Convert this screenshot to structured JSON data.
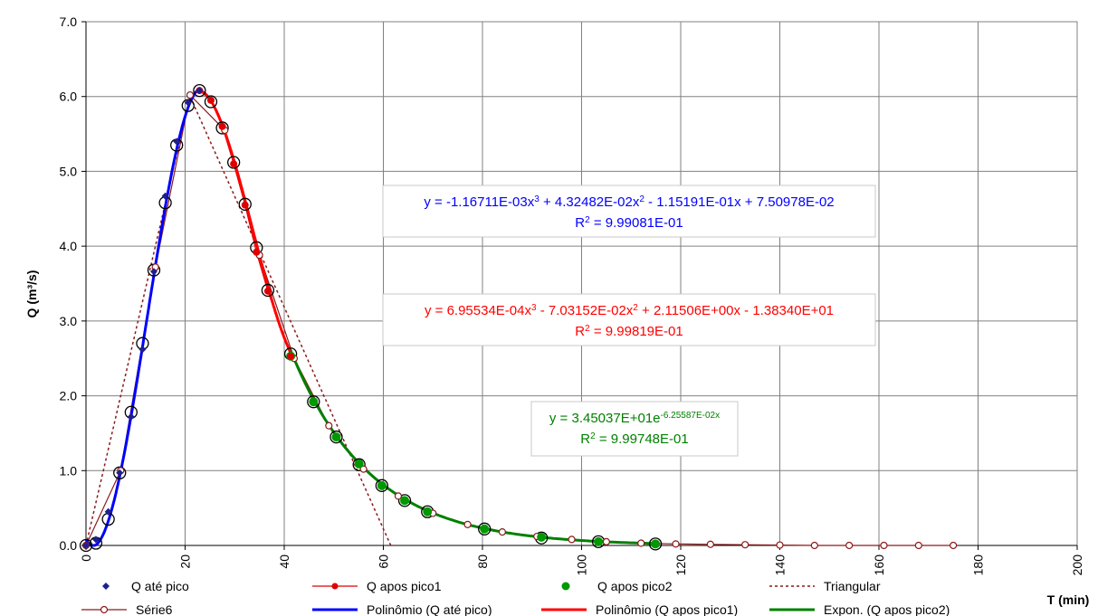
{
  "chart_data": {
    "type": "scatter",
    "xlabel": "T (min)",
    "ylabel": "Q (m³/s)",
    "xlim": [
      0,
      200
    ],
    "ylim": [
      0,
      7
    ],
    "xticks": [
      "0",
      "20",
      "40",
      "60",
      "80",
      "100",
      "120",
      "140",
      "160",
      "180",
      "200"
    ],
    "yticks": [
      "0.0",
      "1.0",
      "2.0",
      "3.0",
      "4.0",
      "5.0",
      "6.0",
      "7.0"
    ],
    "grid": true,
    "legend_position": "bottom",
    "series": [
      {
        "name": "Q até pico",
        "color": "#1f1f8f",
        "marker": "diamond",
        "x": [
          0,
          2,
          4.5,
          6.8,
          9.1,
          11.4,
          13.7,
          16,
          18.3,
          20.6,
          22.9
        ],
        "y": [
          0,
          0.08,
          0.45,
          0.97,
          1.72,
          2.62,
          3.66,
          4.67,
          5.4,
          5.92,
          6.08
        ]
      },
      {
        "name": "Q apos pico1",
        "color": "#dd0000",
        "marker": "circle",
        "x": [
          22.9,
          25.2,
          27.5,
          29.8,
          32.1,
          34.4,
          36.7,
          41.3
        ],
        "y": [
          6.08,
          5.95,
          5.6,
          5.1,
          4.55,
          3.92,
          3.4,
          2.53
        ]
      },
      {
        "name": "Q apos pico2",
        "color": "#009900",
        "marker": "circle",
        "x": [
          41.3,
          45.9,
          50.5,
          55.1,
          59.7,
          64.3,
          68.9,
          80.4,
          91.9,
          103.4,
          114.9
        ],
        "y": [
          2.53,
          1.92,
          1.45,
          1.09,
          0.8,
          0.6,
          0.45,
          0.22,
          0.11,
          0.05,
          0.02
        ]
      },
      {
        "name": "Triangular",
        "color": "#8b1a1a",
        "style": "dotted",
        "x": [
          0,
          21,
          61.5
        ],
        "y": [
          0,
          6.0,
          0
        ]
      },
      {
        "name": "Série6",
        "color": "#8b1a1a",
        "marker": "open-circle",
        "x": [
          0,
          7,
          14,
          21,
          28,
          35,
          42,
          49,
          56,
          63,
          70,
          77,
          84,
          91,
          98,
          105,
          112,
          119,
          126,
          133,
          140,
          147,
          154,
          161,
          168,
          175
        ],
        "y": [
          0,
          1.0,
          3.72,
          6.02,
          5.55,
          3.88,
          2.5,
          1.6,
          1.02,
          0.66,
          0.43,
          0.28,
          0.18,
          0.12,
          0.08,
          0.05,
          0.03,
          0.02,
          0.015,
          0.01,
          0.005,
          0,
          0,
          0,
          0,
          0
        ]
      },
      {
        "name": "Polinômio (Q até pico)",
        "color": "#0000ff",
        "style": "solid",
        "fit": "poly3",
        "coefficients": [
          -0.00116711,
          0.0432482,
          -0.115191,
          0.0750978
        ],
        "domain": [
          0,
          23
        ]
      },
      {
        "name": "Polinômio (Q apos pico1)",
        "color": "#ff0000",
        "style": "solid",
        "fit": "poly3",
        "coefficients": [
          0.000695534,
          -0.0703152,
          2.11506,
          -13.834
        ],
        "domain": [
          23,
          41.3
        ]
      },
      {
        "name": "Expon. (Q apos pico2)",
        "color": "#008000",
        "style": "solid",
        "fit": "exp",
        "a": 34.5037,
        "b": -0.0625587,
        "domain": [
          41.3,
          115
        ]
      }
    ],
    "large_circles": {
      "x": [
        0,
        2,
        4.5,
        6.8,
        9.1,
        11.4,
        13.7,
        16,
        18.3,
        20.6,
        22.9,
        25.2,
        27.5,
        29.8,
        32.1,
        34.4,
        36.7,
        41.3,
        45.9,
        50.5,
        55.1,
        59.7,
        64.3,
        68.9,
        80.4,
        91.9,
        103.4,
        114.9
      ],
      "y": [
        0,
        0.03,
        0.35,
        0.97,
        1.78,
        2.7,
        3.68,
        4.58,
        5.35,
        5.88,
        6.08,
        5.93,
        5.58,
        5.12,
        4.56,
        3.98,
        3.41,
        2.56,
        1.92,
        1.45,
        1.08,
        0.8,
        0.6,
        0.45,
        0.22,
        0.1,
        0.05,
        0.02
      ]
    },
    "annotations": [
      {
        "id": "fit1",
        "color": "#0000ff",
        "line1_parts": [
          "y = -1.16711E-03x",
          "3",
          " + 4.32482E-02x",
          "2",
          " - 1.15191E-01x + 7.50978E-02"
        ],
        "line2_parts": [
          "R",
          "2",
          " = 9.99081E-01"
        ]
      },
      {
        "id": "fit2",
        "color": "#ff0000",
        "line1_parts": [
          "y = 6.95534E-04x",
          "3",
          " - 7.03152E-02x",
          "2",
          " + 2.11506E+00x - 1.38340E+01"
        ],
        "line2_parts": [
          "R",
          "2",
          " = 9.99819E-01"
        ]
      },
      {
        "id": "fit3",
        "color": "#008000",
        "line1_parts": [
          "y = 3.45037E+01e",
          "-6.25587E-02x"
        ],
        "line2_parts": [
          "R",
          "2",
          " = 9.99748E-01"
        ]
      }
    ]
  }
}
